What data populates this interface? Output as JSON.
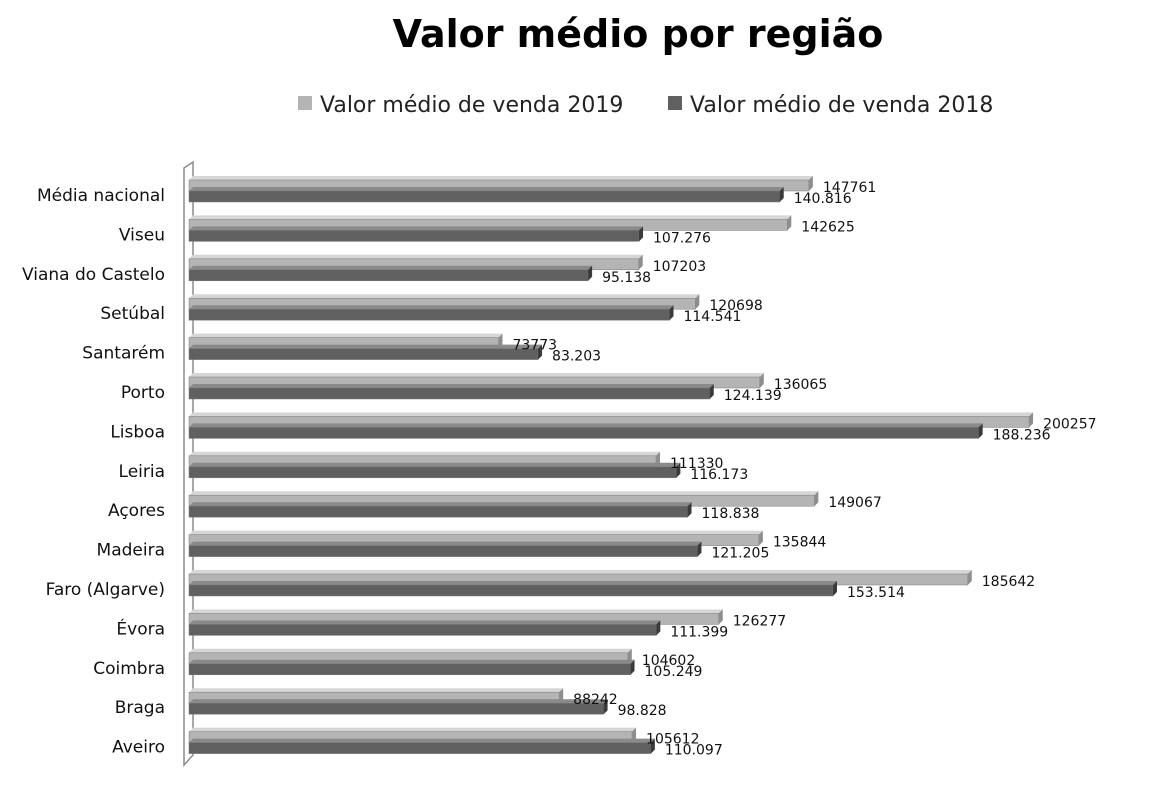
{
  "chart_data": {
    "type": "bar",
    "orientation": "horizontal",
    "title": "Valor médio por região",
    "categories": [
      "Média nacional",
      "Viseu",
      "Viana do Castelo",
      "Setúbal",
      "Santarém",
      "Porto",
      "Lisboa",
      "Leiria",
      "Açores",
      "Madeira",
      "Faro (Algarve)",
      "Évora",
      "Coimbra",
      "Braga",
      "Aveiro"
    ],
    "series": [
      {
        "name": "Valor médio de venda 2019",
        "color": "#b4b4b4",
        "values": [
          147761,
          142625,
          107203,
          120698,
          73773,
          136065,
          200257,
          111330,
          149067,
          135844,
          185642,
          126277,
          104602,
          88242,
          105612
        ],
        "labels": [
          "147761",
          "142625",
          "107203",
          "120698",
          "73773",
          "136065",
          "200257",
          "111330",
          "149067",
          "135844",
          "185642",
          "126277",
          "104602",
          "88242",
          "105612"
        ]
      },
      {
        "name": "Valor médio de venda 2018",
        "color": "#606060",
        "values": [
          140816,
          107276,
          95138,
          114541,
          83203,
          124139,
          188236,
          116173,
          118838,
          121205,
          153514,
          111399,
          105249,
          98828,
          110097
        ],
        "labels": [
          "140.816",
          "107.276",
          "95.138",
          "114.541",
          "83.203",
          "124.139",
          "188.236",
          "116.173",
          "118.838",
          "121.205",
          "153.514",
          "111.399",
          "105.249",
          "98.828",
          "110.097"
        ]
      }
    ],
    "xlim": [
      0,
      200000
    ],
    "legend_position": "top",
    "grid": false,
    "style": "3d"
  }
}
